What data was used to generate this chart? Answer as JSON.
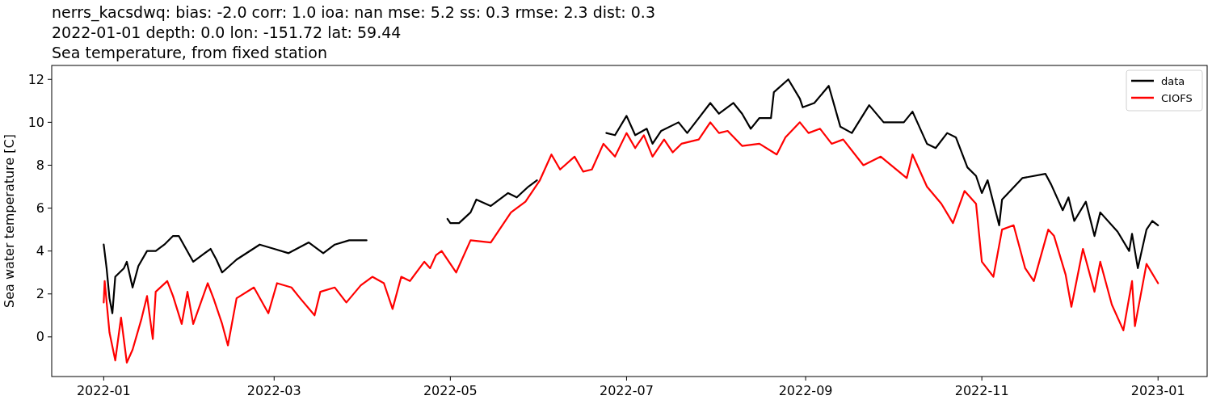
{
  "chart_data": {
    "type": "line",
    "title": "nerrs_kacsdwq: bias: -2.0  corr: 1.0  ioa: nan  mse: 5.2  ss: 0.3  rmse: 2.3  dist: 0.3",
    "subtitle": "2022-01-01 depth: 0.0 lon: -151.72 lat: 59.44\nSea temperature, from fixed station",
    "ylabel": "Sea water temperature [C]",
    "xlim": [
      "2021-12-14",
      "2023-01-18"
    ],
    "xticks": [
      "2022-01",
      "2022-03",
      "2022-05",
      "2022-07",
      "2022-09",
      "2022-11",
      "2023-01"
    ],
    "ylim": [
      -1.85,
      12.65
    ],
    "yticks": [
      0,
      2,
      4,
      6,
      8,
      10,
      12
    ],
    "grid": false,
    "legend": "top right",
    "line_style": "solid",
    "marker": "none",
    "series": [
      {
        "name": "data",
        "color": "#000000",
        "x": [
          "2022-01-01",
          "2022-01-02",
          "2022-01-03",
          "2022-01-04",
          "2022-01-05",
          "2022-01-08",
          "2022-01-09",
          "2022-01-11",
          "2022-01-13",
          "2022-01-16",
          "2022-01-19",
          "2022-01-22",
          "2022-01-25",
          "2022-01-27",
          "2022-02-01",
          "2022-02-07",
          "2022-02-09",
          "2022-02-11",
          "2022-02-16",
          "2022-02-24",
          "2022-03-01",
          "2022-03-06",
          "2022-03-13",
          "2022-03-18",
          "2022-03-22",
          "2022-03-27",
          "2022-04-02",
          "2022-04-15",
          "2022-04-30",
          "2022-05-01",
          "2022-05-04",
          "2022-05-08",
          "2022-05-10",
          "2022-05-15",
          "2022-05-21",
          "2022-05-24",
          "2022-05-28",
          "2022-05-31",
          "2022-06-10",
          "2022-06-24",
          "2022-06-27",
          "2022-07-01",
          "2022-07-04",
          "2022-07-08",
          "2022-07-10",
          "2022-07-13",
          "2022-07-19",
          "2022-07-22",
          "2022-07-26",
          "2022-07-30",
          "2022-08-02",
          "2022-08-07",
          "2022-08-10",
          "2022-08-13",
          "2022-08-16",
          "2022-08-20",
          "2022-08-21",
          "2022-08-26",
          "2022-08-30",
          "2022-08-31",
          "2022-09-04",
          "2022-09-09",
          "2022-09-13",
          "2022-09-17",
          "2022-09-23",
          "2022-09-28",
          "2022-10-05",
          "2022-10-08",
          "2022-10-13",
          "2022-10-16",
          "2022-10-20",
          "2022-10-23",
          "2022-10-27",
          "2022-10-30",
          "2022-11-01",
          "2022-11-03",
          "2022-11-07",
          "2022-11-08",
          "2022-11-15",
          "2022-11-23",
          "2022-11-25",
          "2022-11-29",
          "2022-12-01",
          "2022-12-03",
          "2022-12-07",
          "2022-12-10",
          "2022-12-12",
          "2022-12-18",
          "2022-12-22",
          "2022-12-23",
          "2022-12-25",
          "2022-12-28",
          "2022-12-30",
          "2023-01-01"
        ],
        "values": [
          4.3,
          3.2,
          1.8,
          1.1,
          2.8,
          3.2,
          3.5,
          2.3,
          3.3,
          4.0,
          4.0,
          4.3,
          4.7,
          4.7,
          3.5,
          4.1,
          3.6,
          3.0,
          3.6,
          4.3,
          4.1,
          3.9,
          4.4,
          3.9,
          4.3,
          4.5,
          4.5,
          null,
          5.5,
          5.3,
          5.3,
          5.8,
          6.4,
          6.1,
          6.7,
          6.5,
          7.0,
          7.3,
          null,
          9.5,
          9.4,
          10.3,
          9.4,
          9.7,
          9.0,
          9.6,
          10.0,
          9.5,
          10.2,
          10.9,
          10.4,
          10.9,
          10.4,
          9.7,
          10.2,
          10.2,
          11.4,
          12.0,
          11.1,
          10.7,
          10.9,
          11.7,
          9.8,
          9.5,
          10.8,
          10.0,
          10.0,
          10.5,
          9.0,
          8.8,
          9.5,
          9.3,
          7.9,
          7.5,
          6.7,
          7.3,
          5.2,
          6.4,
          7.4,
          7.6,
          7.1,
          5.9,
          6.5,
          5.4,
          6.3,
          4.7,
          5.8,
          4.9,
          4.0,
          4.8,
          3.2,
          5.0,
          5.4,
          5.2
        ]
      },
      {
        "name": "CIOFS",
        "color": "#ff0000",
        "x": [
          "2022-01-01",
          "2022-01-01T08:00",
          "2022-01-03",
          "2022-01-05",
          "2022-01-07",
          "2022-01-09",
          "2022-01-11",
          "2022-01-14",
          "2022-01-16",
          "2022-01-18",
          "2022-01-19",
          "2022-01-23",
          "2022-01-25",
          "2022-01-28",
          "2022-01-30",
          "2022-02-01",
          "2022-02-06",
          "2022-02-08",
          "2022-02-11",
          "2022-02-13",
          "2022-02-16",
          "2022-02-22",
          "2022-02-27",
          "2022-03-02",
          "2022-03-07",
          "2022-03-10",
          "2022-03-15",
          "2022-03-17",
          "2022-03-22",
          "2022-03-26",
          "2022-03-31",
          "2022-04-04",
          "2022-04-08",
          "2022-04-11",
          "2022-04-14",
          "2022-04-17",
          "2022-04-22",
          "2022-04-24",
          "2022-04-26",
          "2022-04-28",
          "2022-05-03",
          "2022-05-08",
          "2022-05-15",
          "2022-05-22",
          "2022-05-27",
          "2022-06-01",
          "2022-06-05",
          "2022-06-08",
          "2022-06-13",
          "2022-06-16",
          "2022-06-19",
          "2022-06-23",
          "2022-06-27",
          "2022-07-01",
          "2022-07-04",
          "2022-07-07",
          "2022-07-10",
          "2022-07-14",
          "2022-07-17",
          "2022-07-20",
          "2022-07-26",
          "2022-07-30",
          "2022-08-02",
          "2022-08-05",
          "2022-08-10",
          "2022-08-16",
          "2022-08-22",
          "2022-08-25",
          "2022-08-30",
          "2022-09-02",
          "2022-09-06",
          "2022-09-10",
          "2022-09-14",
          "2022-09-21",
          "2022-09-27",
          "2022-10-06",
          "2022-10-08",
          "2022-10-13",
          "2022-10-18",
          "2022-10-22",
          "2022-10-26",
          "2022-10-30",
          "2022-11-01",
          "2022-11-05",
          "2022-11-08",
          "2022-11-12",
          "2022-11-16",
          "2022-11-19",
          "2022-11-24",
          "2022-11-26",
          "2022-11-30",
          "2022-12-02",
          "2022-12-06",
          "2022-12-10",
          "2022-12-12",
          "2022-12-16",
          "2022-12-20",
          "2022-12-23",
          "2022-12-24",
          "2022-12-28",
          "2023-01-01"
        ],
        "values": [
          1.6,
          2.6,
          0.2,
          -1.1,
          0.9,
          -1.2,
          -0.6,
          0.8,
          1.9,
          -0.1,
          2.1,
          2.6,
          1.9,
          0.6,
          2.1,
          0.6,
          2.5,
          1.8,
          0.6,
          -0.4,
          1.8,
          2.3,
          1.1,
          2.5,
          2.3,
          1.8,
          1.0,
          2.1,
          2.3,
          1.6,
          2.4,
          2.8,
          2.5,
          1.3,
          2.8,
          2.6,
          3.5,
          3.2,
          3.8,
          4.0,
          3.0,
          4.5,
          4.4,
          5.8,
          6.3,
          7.3,
          8.5,
          7.8,
          8.4,
          7.7,
          7.8,
          9.0,
          8.4,
          9.5,
          8.8,
          9.4,
          8.4,
          9.2,
          8.6,
          9.0,
          9.2,
          10.0,
          9.5,
          9.6,
          8.9,
          9.0,
          8.5,
          9.3,
          10.0,
          9.5,
          9.7,
          9.0,
          9.2,
          8.0,
          8.4,
          7.4,
          8.5,
          7.0,
          6.2,
          5.3,
          6.8,
          6.2,
          3.5,
          2.8,
          5.0,
          5.2,
          3.2,
          2.6,
          5.0,
          4.7,
          2.9,
          1.4,
          4.1,
          2.1,
          3.5,
          1.5,
          0.3,
          2.6,
          0.5,
          3.4,
          2.5
        ]
      }
    ]
  }
}
